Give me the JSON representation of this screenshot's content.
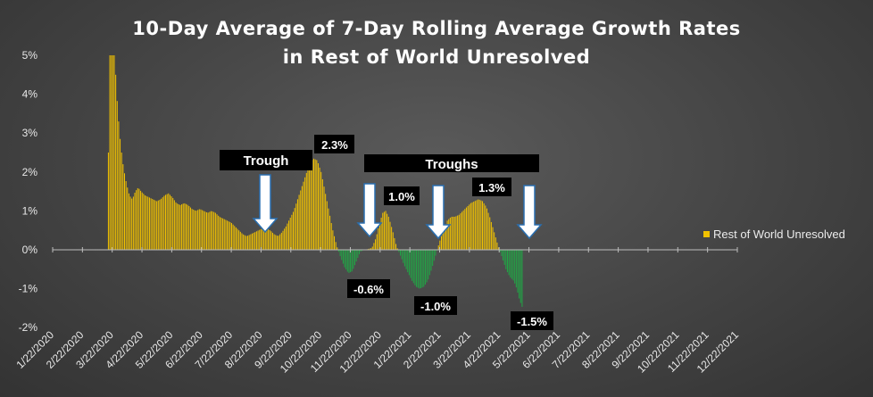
{
  "chart_data": {
    "type": "bar",
    "title_line1": "10-Day Average of 7-Day Rolling Average Growth Rates",
    "title_line2": "in Rest of World Unresolved",
    "x_tick_labels": [
      "1/22/2020",
      "2/22/2020",
      "3/22/2020",
      "4/22/2020",
      "5/22/2020",
      "6/22/2020",
      "7/22/2020",
      "8/22/2020",
      "9/22/2020",
      "10/22/2020",
      "11/22/2020",
      "12/22/2020",
      "1/22/2021",
      "2/22/2021",
      "3/22/2021",
      "4/22/2021",
      "5/22/2021",
      "6/22/2021",
      "7/22/2021",
      "8/22/2021",
      "9/22/2021",
      "10/22/2021",
      "11/22/2021",
      "12/22/2021"
    ],
    "y_tick_labels": [
      "5%",
      "4%",
      "3%",
      "2%",
      "1%",
      "0%",
      "-1%",
      "-2%"
    ],
    "ylim": [
      -2,
      5
    ],
    "series": [
      {
        "name": "Rest of World Unresolved",
        "positive_color": "#F2C200",
        "negative_color": "#21A645",
        "x_unit": "days_since_2020-01-22",
        "y_unit": "percent",
        "points": [
          [
            55,
            0
          ],
          [
            58,
            5.0
          ],
          [
            61,
            5.0
          ],
          [
            63,
            5.0
          ],
          [
            65,
            4.0
          ],
          [
            67,
            3.3
          ],
          [
            69,
            2.7
          ],
          [
            72,
            2.1
          ],
          [
            75,
            1.7
          ],
          [
            78,
            1.4
          ],
          [
            81,
            1.3
          ],
          [
            84,
            1.5
          ],
          [
            87,
            1.6
          ],
          [
            90,
            1.5
          ],
          [
            94,
            1.4
          ],
          [
            98,
            1.35
          ],
          [
            102,
            1.3
          ],
          [
            106,
            1.25
          ],
          [
            110,
            1.3
          ],
          [
            114,
            1.4
          ],
          [
            118,
            1.45
          ],
          [
            122,
            1.35
          ],
          [
            126,
            1.2
          ],
          [
            130,
            1.15
          ],
          [
            134,
            1.2
          ],
          [
            138,
            1.15
          ],
          [
            142,
            1.05
          ],
          [
            146,
            1.0
          ],
          [
            150,
            1.05
          ],
          [
            154,
            1.0
          ],
          [
            158,
            0.95
          ],
          [
            162,
            1.0
          ],
          [
            166,
            0.95
          ],
          [
            170,
            0.85
          ],
          [
            174,
            0.8
          ],
          [
            178,
            0.75
          ],
          [
            182,
            0.7
          ],
          [
            186,
            0.6
          ],
          [
            190,
            0.5
          ],
          [
            194,
            0.4
          ],
          [
            198,
            0.35
          ],
          [
            202,
            0.4
          ],
          [
            206,
            0.45
          ],
          [
            210,
            0.5
          ],
          [
            214,
            0.55
          ],
          [
            218,
            0.55
          ],
          [
            222,
            0.5
          ],
          [
            226,
            0.4
          ],
          [
            230,
            0.35
          ],
          [
            234,
            0.45
          ],
          [
            238,
            0.6
          ],
          [
            242,
            0.8
          ],
          [
            246,
            1.0
          ],
          [
            250,
            1.3
          ],
          [
            254,
            1.6
          ],
          [
            258,
            1.9
          ],
          [
            262,
            2.2
          ],
          [
            266,
            2.35
          ],
          [
            270,
            2.3
          ],
          [
            274,
            2.0
          ],
          [
            278,
            1.5
          ],
          [
            282,
            1.0
          ],
          [
            286,
            0.5
          ],
          [
            290,
            0.1
          ],
          [
            294,
            -0.2
          ],
          [
            298,
            -0.45
          ],
          [
            302,
            -0.6
          ],
          [
            306,
            -0.55
          ],
          [
            310,
            -0.3
          ],
          [
            314,
            -0.05
          ],
          [
            318,
            0.0
          ],
          [
            322,
            0.02
          ],
          [
            326,
            0.05
          ],
          [
            330,
            0.3
          ],
          [
            334,
            0.7
          ],
          [
            337,
            0.95
          ],
          [
            340,
            1.0
          ],
          [
            343,
            0.85
          ],
          [
            347,
            0.5
          ],
          [
            351,
            0.1
          ],
          [
            355,
            -0.15
          ],
          [
            359,
            -0.4
          ],
          [
            363,
            -0.6
          ],
          [
            367,
            -0.8
          ],
          [
            371,
            -0.95
          ],
          [
            375,
            -1.0
          ],
          [
            379,
            -0.95
          ],
          [
            383,
            -0.8
          ],
          [
            387,
            -0.5
          ],
          [
            391,
            -0.15
          ],
          [
            395,
            0.2
          ],
          [
            399,
            0.5
          ],
          [
            403,
            0.75
          ],
          [
            407,
            0.85
          ],
          [
            411,
            0.85
          ],
          [
            415,
            0.9
          ],
          [
            419,
            1.0
          ],
          [
            423,
            1.1
          ],
          [
            427,
            1.2
          ],
          [
            431,
            1.25
          ],
          [
            435,
            1.3
          ],
          [
            439,
            1.25
          ],
          [
            443,
            1.1
          ],
          [
            447,
            0.8
          ],
          [
            451,
            0.45
          ],
          [
            455,
            0.1
          ],
          [
            459,
            -0.2
          ],
          [
            463,
            -0.5
          ],
          [
            467,
            -0.7
          ],
          [
            471,
            -0.8
          ],
          [
            474,
            -1.0
          ],
          [
            477,
            -1.3
          ],
          [
            480,
            -1.5
          ]
        ]
      }
    ],
    "legend": {
      "placement": "right",
      "label": "Rest of World Unresolved"
    },
    "annotations": {
      "trough_label": "Trough",
      "troughs_label": "Troughs",
      "peak_labels": [
        "2.3%",
        "1.0%",
        "1.3%"
      ],
      "trough_values": [
        "-0.6%",
        "-1.0%",
        "-1.5%"
      ]
    },
    "grid": false
  }
}
